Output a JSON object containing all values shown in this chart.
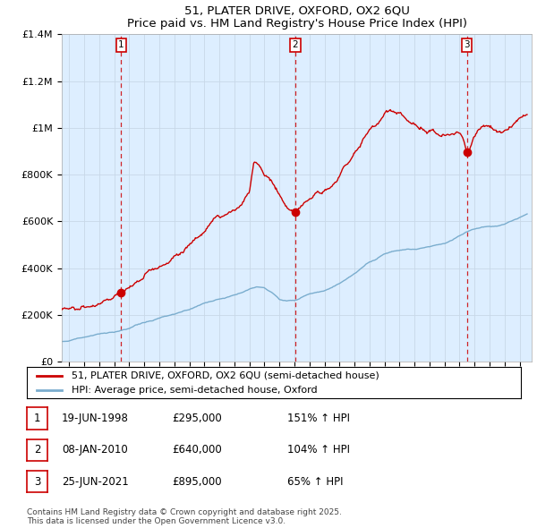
{
  "title_line1": "51, PLATER DRIVE, OXFORD, OX2 6QU",
  "title_line2": "Price paid vs. HM Land Registry's House Price Index (HPI)",
  "ylim": [
    0,
    1400000
  ],
  "yticks": [
    0,
    200000,
    400000,
    600000,
    800000,
    1000000,
    1200000,
    1400000
  ],
  "ytick_labels": [
    "£0",
    "£200K",
    "£400K",
    "£600K",
    "£800K",
    "£1M",
    "£1.2M",
    "£1.4M"
  ],
  "red_color": "#cc0000",
  "blue_color": "#7aadce",
  "vline_color": "#cc0000",
  "grid_color": "#c8d8e8",
  "bg_color": "#ddeeff",
  "sale1_date": "19-JUN-1998",
  "sale1_price": 295000,
  "sale1_pct": "151%",
  "sale2_date": "08-JAN-2010",
  "sale2_price": 640000,
  "sale2_pct": "104%",
  "sale3_date": "25-JUN-2021",
  "sale3_price": 895000,
  "sale3_pct": "65%",
  "legend_line1": "51, PLATER DRIVE, OXFORD, OX2 6QU (semi-detached house)",
  "legend_line2": "HPI: Average price, semi-detached house, Oxford",
  "footnote": "Contains HM Land Registry data © Crown copyright and database right 2025.\nThis data is licensed under the Open Government Licence v3.0.",
  "xmin": 1994.5,
  "xmax": 2025.8,
  "sale1_x": 1998.46,
  "sale2_x": 2010.04,
  "sale3_x": 2021.48
}
